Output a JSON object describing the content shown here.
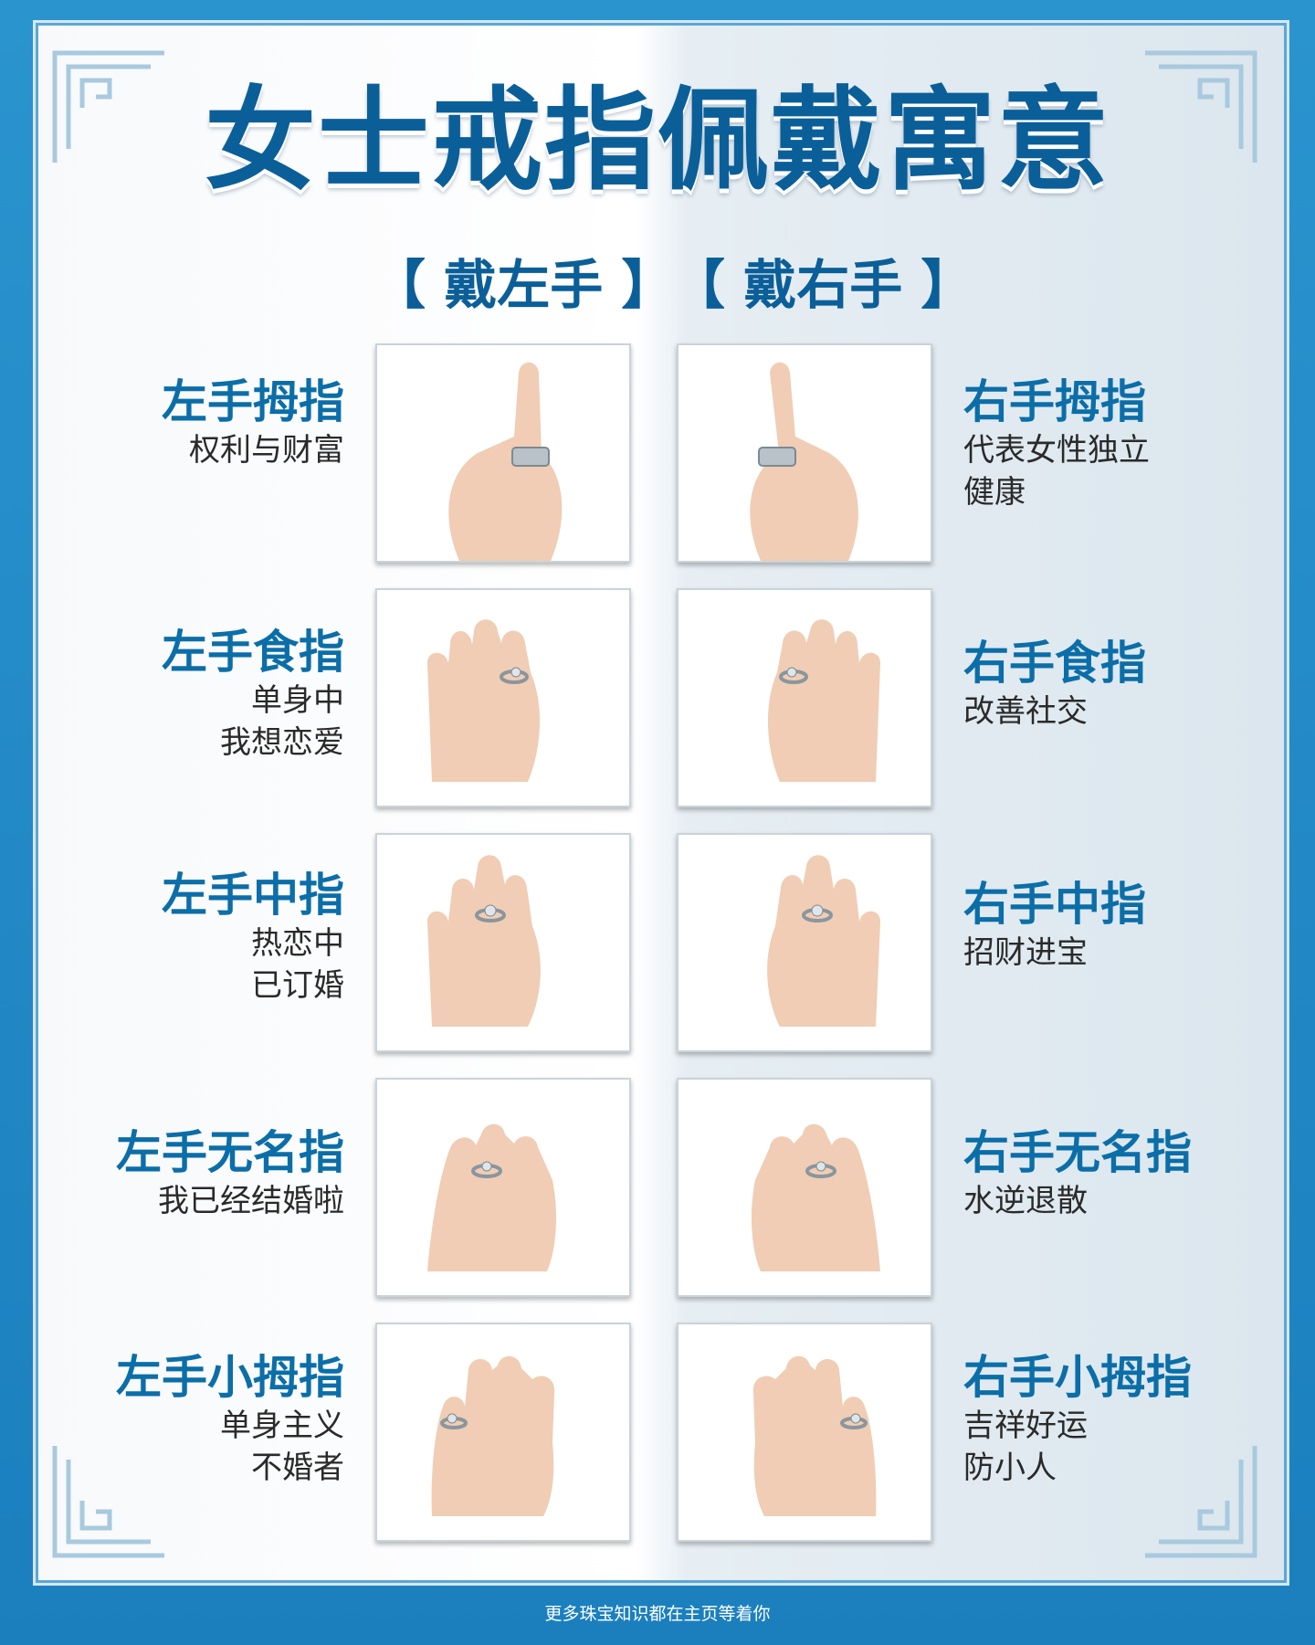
{
  "title": "女士戒指佩戴寓意",
  "columns": {
    "left": "【 戴左手 】",
    "right": "【 戴右手 】"
  },
  "rows": [
    {
      "left": {
        "finger": "左手拇指",
        "meaning": [
          "权利与财富"
        ]
      },
      "right": {
        "finger": "右手拇指",
        "meaning": [
          "代表女性独立",
          "健康"
        ]
      }
    },
    {
      "left": {
        "finger": "左手食指",
        "meaning": [
          "单身中",
          "我想恋爱"
        ]
      },
      "right": {
        "finger": "右手食指",
        "meaning": [
          "改善社交"
        ]
      }
    },
    {
      "left": {
        "finger": "左手中指",
        "meaning": [
          "热恋中",
          "已订婚"
        ]
      },
      "right": {
        "finger": "右手中指",
        "meaning": [
          "招财进宝"
        ]
      }
    },
    {
      "left": {
        "finger": "左手无名指",
        "meaning": [
          "我已经结婚啦"
        ]
      },
      "right": {
        "finger": "右手无名指",
        "meaning": [
          "水逆退散"
        ]
      }
    },
    {
      "left": {
        "finger": "左手小拇指",
        "meaning": [
          "单身主义",
          "不婚者"
        ]
      },
      "right": {
        "finger": "右手小拇指",
        "meaning": [
          "吉祥好运",
          "防小人"
        ]
      }
    }
  ],
  "footer": "更多珠宝知识都在主页等着你",
  "colors": {
    "frame": "#1e86c2",
    "title": "#0b5f99",
    "finger_label": "#0b6ea8",
    "skin": "#f0cdb4",
    "ring": "#b8c2c8"
  }
}
